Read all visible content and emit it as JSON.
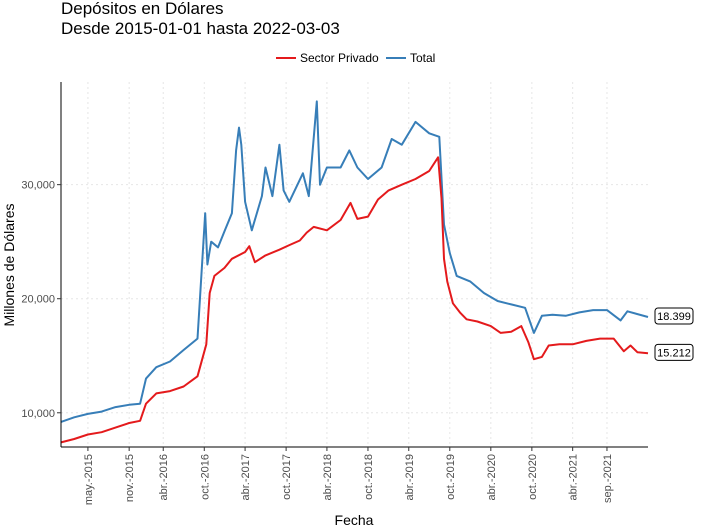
{
  "chart_data": {
    "type": "line",
    "title": "Depósitos en Dólares",
    "subtitle": "Desde 2015-01-01 hasta 2022-03-03",
    "xlabel": "Fecha",
    "ylabel": "Millones de Dólares",
    "xlim": [
      "2015-01-01",
      "2022-03-03"
    ],
    "ylim": [
      7000,
      39000
    ],
    "grid": "on",
    "legend_position": "top",
    "y_ticks": [
      10000,
      20000,
      30000
    ],
    "y_tick_labels": [
      "10,000",
      "20,000",
      "30,000"
    ],
    "x_ticks": [
      "2015-05-01",
      "2015-11-01",
      "2016-04-01",
      "2016-10-01",
      "2017-04-01",
      "2017-10-01",
      "2018-04-01",
      "2018-10-01",
      "2019-04-01",
      "2019-10-01",
      "2020-04-01",
      "2020-10-01",
      "2021-04-01",
      "2021-09-01"
    ],
    "x_tick_labels": [
      "may.-2015",
      "nov.-2015",
      "abr.-2016",
      "oct.-2016",
      "abr.-2017",
      "oct.-2017",
      "abr.-2018",
      "oct.-2018",
      "abr.-2019",
      "oct.-2019",
      "abr.-2020",
      "oct.-2020",
      "abr.-2021",
      "sep.-2021"
    ],
    "series": [
      {
        "name": "Sector Privado",
        "color": "#e41a1c",
        "end_label": "15.212",
        "points": [
          [
            "2015-01-01",
            7400
          ],
          [
            "2015-03-01",
            7700
          ],
          [
            "2015-05-01",
            8100
          ],
          [
            "2015-07-01",
            8300
          ],
          [
            "2015-09-01",
            8700
          ],
          [
            "2015-11-01",
            9100
          ],
          [
            "2015-12-20",
            9300
          ],
          [
            "2016-01-15",
            10800
          ],
          [
            "2016-03-01",
            11700
          ],
          [
            "2016-05-01",
            11900
          ],
          [
            "2016-07-01",
            12300
          ],
          [
            "2016-09-01",
            13200
          ],
          [
            "2016-10-10",
            16000
          ],
          [
            "2016-10-25",
            20500
          ],
          [
            "2016-11-15",
            22000
          ],
          [
            "2016-12-30",
            22700
          ],
          [
            "2017-02-01",
            23500
          ],
          [
            "2017-04-01",
            24100
          ],
          [
            "2017-04-20",
            24600
          ],
          [
            "2017-05-15",
            23200
          ],
          [
            "2017-07-01",
            23800
          ],
          [
            "2017-09-01",
            24300
          ],
          [
            "2017-10-15",
            24700
          ],
          [
            "2017-12-01",
            25100
          ],
          [
            "2018-01-01",
            25800
          ],
          [
            "2018-02-01",
            26300
          ],
          [
            "2018-04-01",
            26000
          ],
          [
            "2018-06-01",
            26900
          ],
          [
            "2018-07-15",
            28400
          ],
          [
            "2018-08-15",
            27000
          ],
          [
            "2018-10-01",
            27200
          ],
          [
            "2018-11-15",
            28700
          ],
          [
            "2019-01-01",
            29500
          ],
          [
            "2019-03-01",
            30000
          ],
          [
            "2019-05-01",
            30500
          ],
          [
            "2019-07-01",
            31200
          ],
          [
            "2019-08-10",
            32400
          ],
          [
            "2019-08-25",
            28800
          ],
          [
            "2019-09-05",
            23500
          ],
          [
            "2019-09-20",
            21500
          ],
          [
            "2019-10-15",
            19600
          ],
          [
            "2019-11-15",
            18800
          ],
          [
            "2019-12-15",
            18200
          ],
          [
            "2020-02-01",
            18000
          ],
          [
            "2020-04-01",
            17600
          ],
          [
            "2020-05-15",
            17000
          ],
          [
            "2020-07-01",
            17100
          ],
          [
            "2020-08-15",
            17600
          ],
          [
            "2020-09-15",
            16200
          ],
          [
            "2020-10-10",
            14700
          ],
          [
            "2020-11-15",
            14900
          ],
          [
            "2020-12-15",
            15900
          ],
          [
            "2021-02-01",
            16000
          ],
          [
            "2021-04-01",
            16000
          ],
          [
            "2021-06-01",
            16300
          ],
          [
            "2021-08-01",
            16500
          ],
          [
            "2021-10-01",
            16500
          ],
          [
            "2021-11-15",
            15400
          ],
          [
            "2021-12-15",
            15900
          ],
          [
            "2022-01-15",
            15300
          ],
          [
            "2022-03-03",
            15212
          ]
        ]
      },
      {
        "name": "Total",
        "color": "#377eb8",
        "end_label": "18.399",
        "points": [
          [
            "2015-01-01",
            9200
          ],
          [
            "2015-03-01",
            9600
          ],
          [
            "2015-05-01",
            9900
          ],
          [
            "2015-07-01",
            10100
          ],
          [
            "2015-09-01",
            10500
          ],
          [
            "2015-11-01",
            10700
          ],
          [
            "2015-12-20",
            10800
          ],
          [
            "2016-01-15",
            13000
          ],
          [
            "2016-03-01",
            14000
          ],
          [
            "2016-05-01",
            14500
          ],
          [
            "2016-07-01",
            15500
          ],
          [
            "2016-09-01",
            16500
          ],
          [
            "2016-10-05",
            27500
          ],
          [
            "2016-10-15",
            23000
          ],
          [
            "2016-11-01",
            25000
          ],
          [
            "2016-12-01",
            24500
          ],
          [
            "2017-01-01",
            26000
          ],
          [
            "2017-02-01",
            27500
          ],
          [
            "2017-02-20",
            33000
          ],
          [
            "2017-03-05",
            35000
          ],
          [
            "2017-03-15",
            33500
          ],
          [
            "2017-04-01",
            28500
          ],
          [
            "2017-05-01",
            26000
          ],
          [
            "2017-06-15",
            29000
          ],
          [
            "2017-07-01",
            31500
          ],
          [
            "2017-08-01",
            29000
          ],
          [
            "2017-09-01",
            33500
          ],
          [
            "2017-09-20",
            29500
          ],
          [
            "2017-10-15",
            28500
          ],
          [
            "2017-12-15",
            31000
          ],
          [
            "2018-01-10",
            29000
          ],
          [
            "2018-02-15",
            37300
          ],
          [
            "2018-03-01",
            30000
          ],
          [
            "2018-04-01",
            31500
          ],
          [
            "2018-06-01",
            31500
          ],
          [
            "2018-07-10",
            33000
          ],
          [
            "2018-08-15",
            31500
          ],
          [
            "2018-10-01",
            30500
          ],
          [
            "2018-12-01",
            31500
          ],
          [
            "2019-01-15",
            34000
          ],
          [
            "2019-03-01",
            33500
          ],
          [
            "2019-05-01",
            35500
          ],
          [
            "2019-07-01",
            34500
          ],
          [
            "2019-08-15",
            34200
          ],
          [
            "2019-09-05",
            26500
          ],
          [
            "2019-10-01",
            24000
          ],
          [
            "2019-11-01",
            22000
          ],
          [
            "2020-01-01",
            21500
          ],
          [
            "2020-03-01",
            20500
          ],
          [
            "2020-05-01",
            19800
          ],
          [
            "2020-07-01",
            19500
          ],
          [
            "2020-09-01",
            19200
          ],
          [
            "2020-10-10",
            17000
          ],
          [
            "2020-11-15",
            18500
          ],
          [
            "2021-01-01",
            18600
          ],
          [
            "2021-03-01",
            18500
          ],
          [
            "2021-05-01",
            18800
          ],
          [
            "2021-07-01",
            19000
          ],
          [
            "2021-09-01",
            19000
          ],
          [
            "2021-11-01",
            18100
          ],
          [
            "2021-12-01",
            18900
          ],
          [
            "2022-03-03",
            18399
          ]
        ]
      }
    ]
  }
}
